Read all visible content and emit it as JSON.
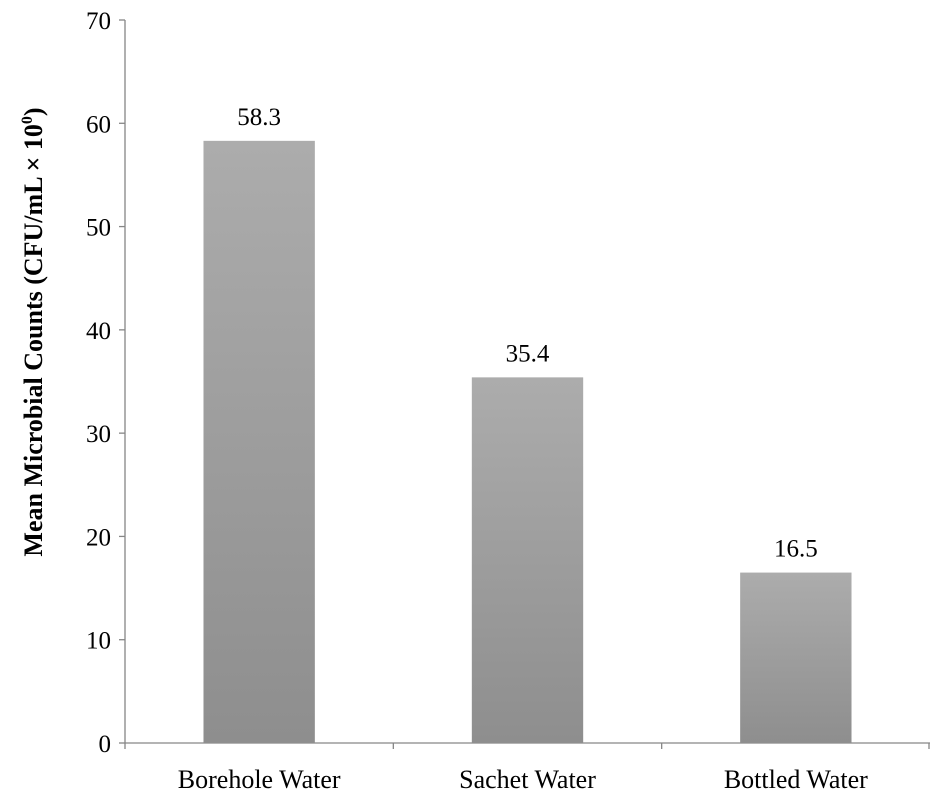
{
  "chart_data": {
    "type": "bar",
    "categories": [
      "Borehole Water",
      "Sachet Water",
      "Bottled Water"
    ],
    "values": [
      58.3,
      35.4,
      16.5
    ],
    "data_labels": [
      "58.3",
      "35.4",
      "16.5"
    ],
    "ylabel_main": "Mean Microbial Counts (CFU/mL × 10",
    "ylabel_sup": "0",
    "ylabel_close": ")",
    "xlabel": "",
    "ylim": [
      0,
      70
    ],
    "yticks": [
      0,
      10,
      20,
      30,
      40,
      50,
      60,
      70
    ],
    "grid": false,
    "legend": "none",
    "colors": {
      "bar_top": "#acacac",
      "bar_bottom": "#8e8e8e",
      "axis": "#868686"
    }
  }
}
